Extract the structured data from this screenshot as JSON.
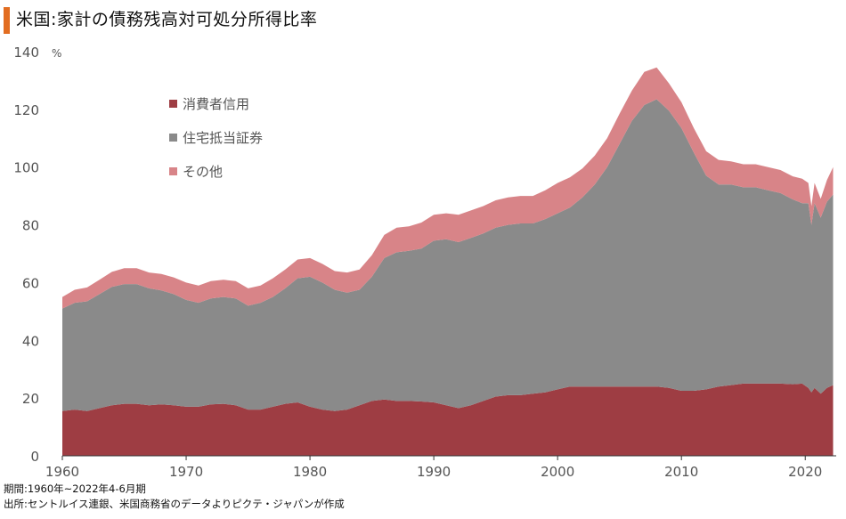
{
  "title": "米国:家計の債務残高対可処分所得比率",
  "notes": {
    "period": "期間:1960年~2022年4-6月期",
    "source": "出所:セントルイス連銀、米国商務省のデータよりピクテ・ジャパンが作成"
  },
  "chart_data": {
    "type": "area",
    "stacked": true,
    "unit": "%",
    "title": "米国:家計の債務残高対可処分所得比率",
    "xlabel": "",
    "ylabel": "%",
    "xlim": [
      1960,
      2022.5
    ],
    "ylim": [
      0,
      140
    ],
    "x_ticks": [
      1960,
      1970,
      1980,
      1990,
      2000,
      2010,
      2020
    ],
    "y_ticks": [
      0,
      20,
      40,
      60,
      80,
      100,
      120,
      140
    ],
    "grid": false,
    "legend_position": "top-left",
    "x": [
      1960,
      1961,
      1962,
      1963,
      1964,
      1965,
      1966,
      1967,
      1968,
      1969,
      1970,
      1971,
      1972,
      1973,
      1974,
      1975,
      1976,
      1977,
      1978,
      1979,
      1980,
      1981,
      1982,
      1983,
      1984,
      1985,
      1986,
      1987,
      1988,
      1989,
      1990,
      1991,
      1992,
      1993,
      1994,
      1995,
      1996,
      1997,
      1998,
      1999,
      2000,
      2001,
      2002,
      2003,
      2004,
      2005,
      2006,
      2007,
      2008,
      2009,
      2010,
      2011,
      2012,
      2013,
      2014,
      2015,
      2016,
      2017,
      2018,
      2019,
      2019.75,
      2020.25,
      2020.5,
      2020.75,
      2021.25,
      2021.75,
      2022.25
    ],
    "series": [
      {
        "name": "消費者信用",
        "color": "#9e3d43",
        "values": [
          15.5,
          16,
          15.5,
          16.5,
          17.5,
          18,
          18,
          17.5,
          17.8,
          17.5,
          17,
          17,
          17.8,
          18,
          17.5,
          16,
          16,
          17,
          18,
          18.5,
          17,
          16,
          15.5,
          16,
          17.5,
          19,
          19.5,
          19,
          19,
          18.8,
          18.5,
          17.5,
          16.5,
          17.5,
          19,
          20.5,
          21,
          21,
          21.5,
          22,
          23,
          24,
          24,
          24,
          24,
          24,
          24,
          24,
          24,
          23.5,
          22.5,
          22.5,
          23,
          24,
          24.5,
          25,
          25,
          25,
          25,
          24.8,
          25,
          23.5,
          22,
          23.5,
          21.5,
          23.5,
          24.5
        ]
      },
      {
        "name": "住宅抵当証券",
        "color": "#8a8a8a",
        "values": [
          35.5,
          37,
          38,
          39.5,
          41,
          41.5,
          41.5,
          40.5,
          39.5,
          38.5,
          37,
          36,
          36.7,
          37,
          37,
          36,
          37,
          38,
          40,
          43,
          45,
          44,
          42,
          40.5,
          40,
          43,
          49,
          51.5,
          52,
          53,
          56,
          57.5,
          57.5,
          58,
          58,
          58.5,
          59,
          59.5,
          59,
          60,
          61,
          62,
          65.5,
          70,
          76,
          84,
          92,
          97.5,
          99.5,
          96,
          91,
          82.5,
          74,
          70,
          69.5,
          68,
          68,
          67,
          66,
          64,
          62.5,
          64,
          58,
          64,
          61,
          64.5,
          66
        ]
      },
      {
        "name": "その他",
        "color": "#d88488",
        "values": [
          4,
          4.5,
          4.8,
          5,
          5.2,
          5.5,
          5.5,
          5.5,
          5.7,
          5.8,
          6,
          6,
          6,
          6,
          6,
          6,
          6,
          6.5,
          6.5,
          6.5,
          6.5,
          6.5,
          6.5,
          7,
          7,
          7.5,
          8,
          8.5,
          8.5,
          9,
          9,
          9,
          9.5,
          9.5,
          9.5,
          9.5,
          9.5,
          9.5,
          9.5,
          10,
          10.5,
          10.5,
          10,
          10,
          10,
          10.5,
          10.5,
          11.5,
          11,
          9.5,
          9,
          8.5,
          8.5,
          8.5,
          8,
          8,
          8,
          8,
          8,
          8,
          8.5,
          7,
          6.5,
          7,
          6.5,
          7.5,
          9.5
        ]
      }
    ]
  }
}
